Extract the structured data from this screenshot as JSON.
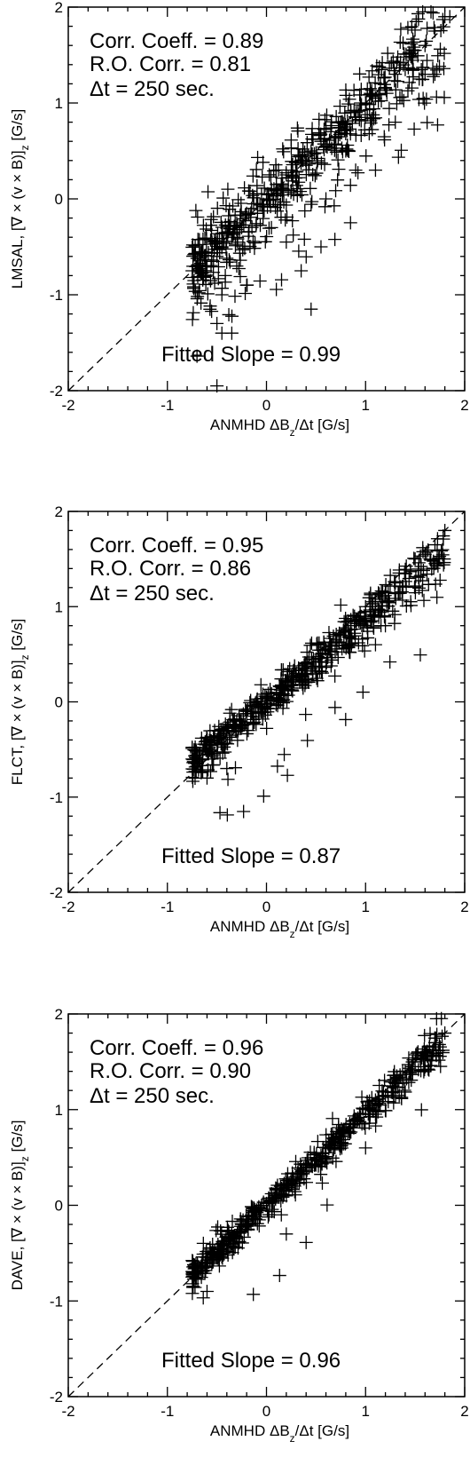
{
  "chart_data": [
    {
      "type": "scatter",
      "xlabel": "ANMHD  ΔB_z/Δt [G/s]",
      "ylabel": "LMSAL, [∇ × (v × B)]_z [G/s]",
      "xlim": [
        -2,
        2
      ],
      "ylim": [
        -2,
        2
      ],
      "xticks": [
        "-2",
        "-1",
        "0",
        "1",
        "2"
      ],
      "yticks": [
        "-2",
        "-1",
        "0",
        "1",
        "2"
      ],
      "reference_line": "y = x (dashed)",
      "annotations": [
        "Corr. Coeff. = 0.89",
        "R.O. Corr. = 0.81",
        "Δt =  250 sec.",
        "Fitted Slope = 0.99"
      ],
      "cloud": {
        "slope": 0.99,
        "spread": 0.17,
        "outlier_fraction": 0.12
      },
      "points": [
        [
          -0.75,
          -0.75
        ],
        [
          -0.7,
          -0.62
        ],
        [
          -0.65,
          -0.55
        ],
        [
          -0.6,
          -0.7
        ],
        [
          -0.55,
          -0.45
        ],
        [
          -0.5,
          -0.6
        ],
        [
          -0.45,
          -0.5
        ],
        [
          -0.4,
          -0.35
        ],
        [
          -0.35,
          -0.4
        ],
        [
          -0.3,
          -0.25
        ],
        [
          -0.25,
          -0.3
        ],
        [
          -0.2,
          -0.15
        ],
        [
          -0.15,
          -0.1
        ],
        [
          -0.1,
          -0.05
        ],
        [
          -0.05,
          0.05
        ],
        [
          0.0,
          0.0
        ],
        [
          0.05,
          0.1
        ],
        [
          0.1,
          0.15
        ],
        [
          0.15,
          0.12
        ],
        [
          0.2,
          0.25
        ],
        [
          0.25,
          0.3
        ],
        [
          0.3,
          0.28
        ],
        [
          0.35,
          0.4
        ],
        [
          0.4,
          0.35
        ],
        [
          0.45,
          0.5
        ],
        [
          0.5,
          0.48
        ],
        [
          0.55,
          0.6
        ],
        [
          0.6,
          0.55
        ],
        [
          0.65,
          0.7
        ],
        [
          0.7,
          0.65
        ],
        [
          0.75,
          0.8
        ],
        [
          0.8,
          0.75
        ],
        [
          0.85,
          0.9
        ],
        [
          0.9,
          0.85
        ],
        [
          0.95,
          1.0
        ],
        [
          1.0,
          1.0
        ],
        [
          1.05,
          1.1
        ],
        [
          1.1,
          1.05
        ],
        [
          1.15,
          1.2
        ],
        [
          1.2,
          1.15
        ],
        [
          1.3,
          1.3
        ],
        [
          1.4,
          1.35
        ],
        [
          1.5,
          1.55
        ],
        [
          1.6,
          1.6
        ],
        [
          1.7,
          1.75
        ],
        [
          1.8,
          1.9
        ],
        [
          1.85,
          1.9
        ],
        [
          -0.5,
          -1.3
        ],
        [
          -0.45,
          -1.4
        ],
        [
          -0.5,
          -1.95
        ],
        [
          -0.35,
          -1.4
        ],
        [
          0.45,
          -1.15
        ],
        [
          0.35,
          -0.75
        ],
        [
          0.55,
          -0.5
        ],
        [
          0.2,
          -0.45
        ],
        [
          0.9,
          0.3
        ],
        [
          1.1,
          0.3
        ],
        [
          0.6,
          0.0
        ],
        [
          0.8,
          0.5
        ],
        [
          1.3,
          0.8
        ],
        [
          1.6,
          1.3
        ],
        [
          1.7,
          1.3
        ],
        [
          -0.3,
          -0.7
        ],
        [
          -0.2,
          -0.9
        ],
        [
          -0.45,
          -1.0
        ],
        [
          0.05,
          -0.3
        ]
      ]
    },
    {
      "type": "scatter",
      "xlabel": "ANMHD  ΔB_z/Δt [G/s]",
      "ylabel": "FLCT, [∇ × (v × B)]_z [G/s]",
      "xlim": [
        -2,
        2
      ],
      "ylim": [
        -2,
        2
      ],
      "xticks": [
        "-2",
        "-1",
        "0",
        "1",
        "2"
      ],
      "yticks": [
        "-2",
        "-1",
        "0",
        "1",
        "2"
      ],
      "reference_line": "y = x (dashed)",
      "annotations": [
        "Corr. Coeff. = 0.95",
        "R.O. Corr. = 0.86",
        "Δt =  250 sec.",
        "Fitted Slope = 0.87"
      ],
      "cloud": {
        "slope": 0.87,
        "spread": 0.09,
        "outlier_fraction": 0.03
      },
      "points": [
        [
          -0.75,
          -0.6
        ],
        [
          -0.7,
          -0.65
        ],
        [
          -0.6,
          -0.5
        ],
        [
          -0.55,
          -0.6
        ],
        [
          -0.5,
          -0.4
        ],
        [
          -0.45,
          -0.45
        ],
        [
          -0.4,
          -0.3
        ],
        [
          -0.35,
          -0.35
        ],
        [
          -0.3,
          -0.2
        ],
        [
          -0.25,
          -0.25
        ],
        [
          -0.2,
          -0.1
        ],
        [
          -0.15,
          -0.12
        ],
        [
          -0.1,
          0.0
        ],
        [
          -0.05,
          -0.02
        ],
        [
          0.0,
          0.05
        ],
        [
          0.05,
          0.02
        ],
        [
          0.1,
          0.1
        ],
        [
          0.15,
          0.08
        ],
        [
          0.2,
          0.2
        ],
        [
          0.25,
          0.18
        ],
        [
          0.3,
          0.3
        ],
        [
          0.35,
          0.28
        ],
        [
          0.4,
          0.4
        ],
        [
          0.45,
          0.35
        ],
        [
          0.5,
          0.45
        ],
        [
          0.55,
          0.5
        ],
        [
          0.6,
          0.55
        ],
        [
          0.65,
          0.6
        ],
        [
          0.7,
          0.65
        ],
        [
          0.75,
          0.7
        ],
        [
          0.8,
          0.75
        ],
        [
          0.85,
          0.8
        ],
        [
          0.9,
          0.85
        ],
        [
          0.95,
          0.9
        ],
        [
          1.0,
          0.95
        ],
        [
          1.05,
          1.0
        ],
        [
          1.1,
          1.05
        ],
        [
          1.15,
          1.1
        ],
        [
          1.2,
          1.15
        ],
        [
          1.3,
          1.25
        ],
        [
          1.4,
          1.35
        ],
        [
          1.5,
          1.5
        ],
        [
          1.6,
          1.55
        ],
        [
          1.7,
          1.65
        ],
        [
          1.8,
          1.8
        ],
        [
          1.1,
          0.6
        ],
        [
          1.2,
          0.8
        ],
        [
          -0.6,
          -0.8
        ],
        [
          -0.4,
          -0.7
        ]
      ]
    },
    {
      "type": "scatter",
      "xlabel": "ANMHD  ΔB_z/Δt [G/s]",
      "ylabel": "DAVE, [∇ × (v × B)]_z [G/s]",
      "xlim": [
        -2,
        2
      ],
      "ylim": [
        -2,
        2
      ],
      "xticks": [
        "-2",
        "-1",
        "0",
        "1",
        "2"
      ],
      "yticks": [
        "-2",
        "-1",
        "0",
        "1",
        "2"
      ],
      "reference_line": "y = x (dashed)",
      "annotations": [
        "Corr. Coeff. = 0.96",
        "R.O. Corr. = 0.90",
        "Δt =  250 sec.",
        "Fitted Slope = 0.96"
      ],
      "cloud": {
        "slope": 0.96,
        "spread": 0.07,
        "outlier_fraction": 0.02
      },
      "points": [
        [
          -0.75,
          -0.75
        ],
        [
          -0.7,
          -0.7
        ],
        [
          -0.65,
          -0.6
        ],
        [
          -0.6,
          -0.65
        ],
        [
          -0.55,
          -0.5
        ],
        [
          -0.5,
          -0.55
        ],
        [
          -0.45,
          -0.4
        ],
        [
          -0.4,
          -0.45
        ],
        [
          -0.35,
          -0.3
        ],
        [
          -0.3,
          -0.35
        ],
        [
          -0.25,
          -0.2
        ],
        [
          -0.2,
          -0.22
        ],
        [
          -0.15,
          -0.1
        ],
        [
          -0.1,
          -0.05
        ],
        [
          -0.05,
          0.0
        ],
        [
          0.0,
          0.02
        ],
        [
          0.05,
          0.05
        ],
        [
          0.1,
          0.1
        ],
        [
          0.15,
          0.12
        ],
        [
          0.2,
          0.2
        ],
        [
          0.25,
          0.22
        ],
        [
          0.3,
          0.3
        ],
        [
          0.35,
          0.32
        ],
        [
          0.4,
          0.4
        ],
        [
          0.45,
          0.42
        ],
        [
          0.5,
          0.5
        ],
        [
          0.55,
          0.52
        ],
        [
          0.6,
          0.6
        ],
        [
          0.65,
          0.62
        ],
        [
          0.7,
          0.7
        ],
        [
          0.75,
          0.72
        ],
        [
          0.8,
          0.8
        ],
        [
          0.85,
          0.82
        ],
        [
          0.9,
          0.9
        ],
        [
          0.95,
          0.92
        ],
        [
          1.0,
          1.0
        ],
        [
          1.05,
          1.02
        ],
        [
          1.1,
          1.1
        ],
        [
          1.2,
          1.15
        ],
        [
          1.3,
          1.28
        ],
        [
          1.4,
          1.4
        ],
        [
          1.5,
          1.5
        ],
        [
          1.6,
          1.6
        ],
        [
          1.7,
          1.7
        ],
        [
          1.8,
          1.8
        ],
        [
          0.2,
          -0.3
        ],
        [
          0.15,
          -0.1
        ],
        [
          1.0,
          0.6
        ],
        [
          -0.6,
          -0.9
        ]
      ]
    }
  ]
}
